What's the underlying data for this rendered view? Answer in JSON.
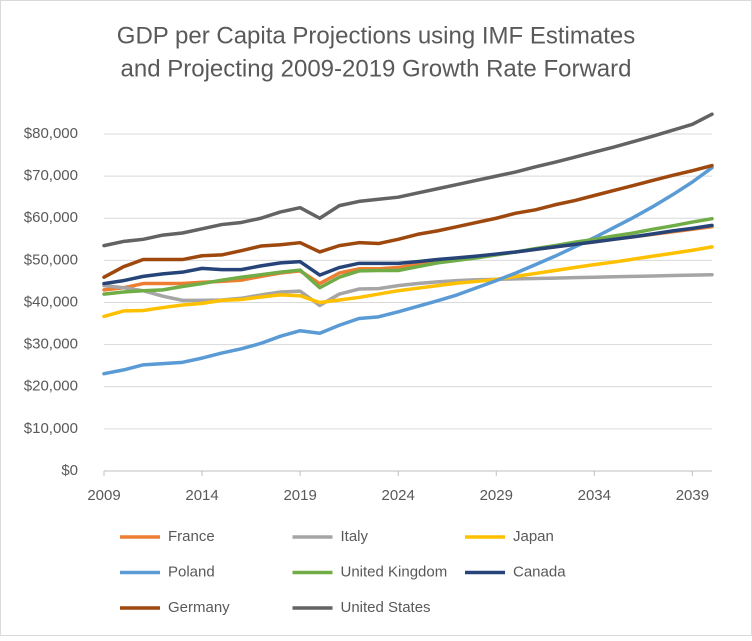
{
  "chart_data": {
    "type": "line",
    "title": [
      "GDP per Capita Projections using IMF Estimates",
      "and Projecting 2009-2019 Growth Rate Forward"
    ],
    "x": [
      2009,
      2010,
      2011,
      2012,
      2013,
      2014,
      2015,
      2016,
      2017,
      2018,
      2019,
      2020,
      2021,
      2022,
      2023,
      2024,
      2025,
      2026,
      2027,
      2028,
      2029,
      2030,
      2031,
      2032,
      2033,
      2034,
      2035,
      2036,
      2037,
      2038,
      2039,
      2040
    ],
    "xlim": [
      2009,
      2040
    ],
    "xticks": [
      2009,
      2014,
      2019,
      2024,
      2029,
      2034,
      2039
    ],
    "ylim": [
      0,
      80000
    ],
    "yticks": [
      {
        "value": 0,
        "label": "$0"
      },
      {
        "value": 10000,
        "label": "$10,000"
      },
      {
        "value": 20000,
        "label": "$20,000"
      },
      {
        "value": 30000,
        "label": "$30,000"
      },
      {
        "value": 40000,
        "label": "$40,000"
      },
      {
        "value": 50000,
        "label": "$50,000"
      },
      {
        "value": 60000,
        "label": "$60,000"
      },
      {
        "value": 70000,
        "label": "$70,000"
      },
      {
        "value": 80000,
        "label": "$80,000"
      }
    ],
    "grid": true,
    "series": [
      {
        "name": "France",
        "color": "#ed7d31",
        "values": [
          43000,
          43500,
          44500,
          44500,
          44500,
          44800,
          45000,
          45300,
          46200,
          47000,
          47500,
          44500,
          47000,
          48000,
          48000,
          48300,
          49000,
          49600,
          50200,
          50800,
          51400,
          52000,
          52600,
          53200,
          53800,
          54400,
          55000,
          55600,
          56200,
          56800,
          57400,
          58000
        ]
      },
      {
        "name": "Italy",
        "color": "#a5a5a5",
        "values": [
          44000,
          43500,
          42800,
          41500,
          40500,
          40500,
          40600,
          41000,
          41800,
          42500,
          42700,
          39300,
          42000,
          43200,
          43300,
          44000,
          44500,
          44900,
          45200,
          45400,
          45500,
          45600,
          45700,
          45800,
          45900,
          46000,
          46100,
          46200,
          46300,
          46400,
          46500,
          46600
        ]
      },
      {
        "name": "Japan",
        "color": "#ffc000",
        "values": [
          36700,
          38000,
          38100,
          38800,
          39400,
          39800,
          40500,
          40700,
          41300,
          41800,
          41600,
          40000,
          40600,
          41200,
          42000,
          42800,
          43400,
          44000,
          44600,
          45000,
          45500,
          46200,
          46900,
          47600,
          48300,
          49000,
          49600,
          50300,
          51000,
          51700,
          52400,
          53200
        ]
      },
      {
        "name": "Poland",
        "color": "#5b9bd5",
        "values": [
          23100,
          24000,
          25200,
          25500,
          25800,
          26800,
          28000,
          29000,
          30300,
          32000,
          33300,
          32700,
          34600,
          36200,
          36600,
          37800,
          39100,
          40400,
          41800,
          43500,
          45200,
          47000,
          49000,
          51000,
          53200,
          55400,
          57800,
          60200,
          62800,
          65600,
          68600,
          72000
        ]
      },
      {
        "name": "United Kingdom",
        "color": "#70ad47",
        "values": [
          42000,
          42500,
          42800,
          43000,
          43800,
          44500,
          45300,
          46000,
          46600,
          47200,
          47700,
          43500,
          46000,
          47500,
          47600,
          47600,
          48500,
          49400,
          50000,
          50600,
          51300,
          52000,
          52800,
          53500,
          54300,
          55000,
          55800,
          56500,
          57400,
          58200,
          59100,
          59900
        ]
      },
      {
        "name": "Canada",
        "color": "#264478",
        "values": [
          44500,
          45200,
          46200,
          46800,
          47200,
          48100,
          47800,
          47800,
          48700,
          49400,
          49700,
          46500,
          48300,
          49300,
          49300,
          49300,
          49700,
          50200,
          50600,
          51000,
          51500,
          52000,
          52600,
          53200,
          53800,
          54400,
          55000,
          55600,
          56300,
          57000,
          57600,
          58300
        ]
      },
      {
        "name": "Germany",
        "color": "#9e480e",
        "values": [
          46000,
          48500,
          50200,
          50200,
          50200,
          51100,
          51300,
          52300,
          53400,
          53700,
          54200,
          52000,
          53500,
          54200,
          54000,
          55000,
          56200,
          57000,
          58000,
          59000,
          60000,
          61200,
          62000,
          63200,
          64200,
          65400,
          66600,
          67800,
          69000,
          70200,
          71300,
          72500
        ]
      },
      {
        "name": "United States",
        "color": "#636363",
        "values": [
          53500,
          54500,
          55000,
          56000,
          56500,
          57500,
          58500,
          59000,
          60000,
          61500,
          62500,
          60000,
          63000,
          64000,
          64500,
          65000,
          66000,
          67000,
          68000,
          69000,
          70000,
          71000,
          72200,
          73300,
          74500,
          75700,
          76900,
          78200,
          79500,
          80900,
          82300,
          84700
        ]
      }
    ]
  }
}
